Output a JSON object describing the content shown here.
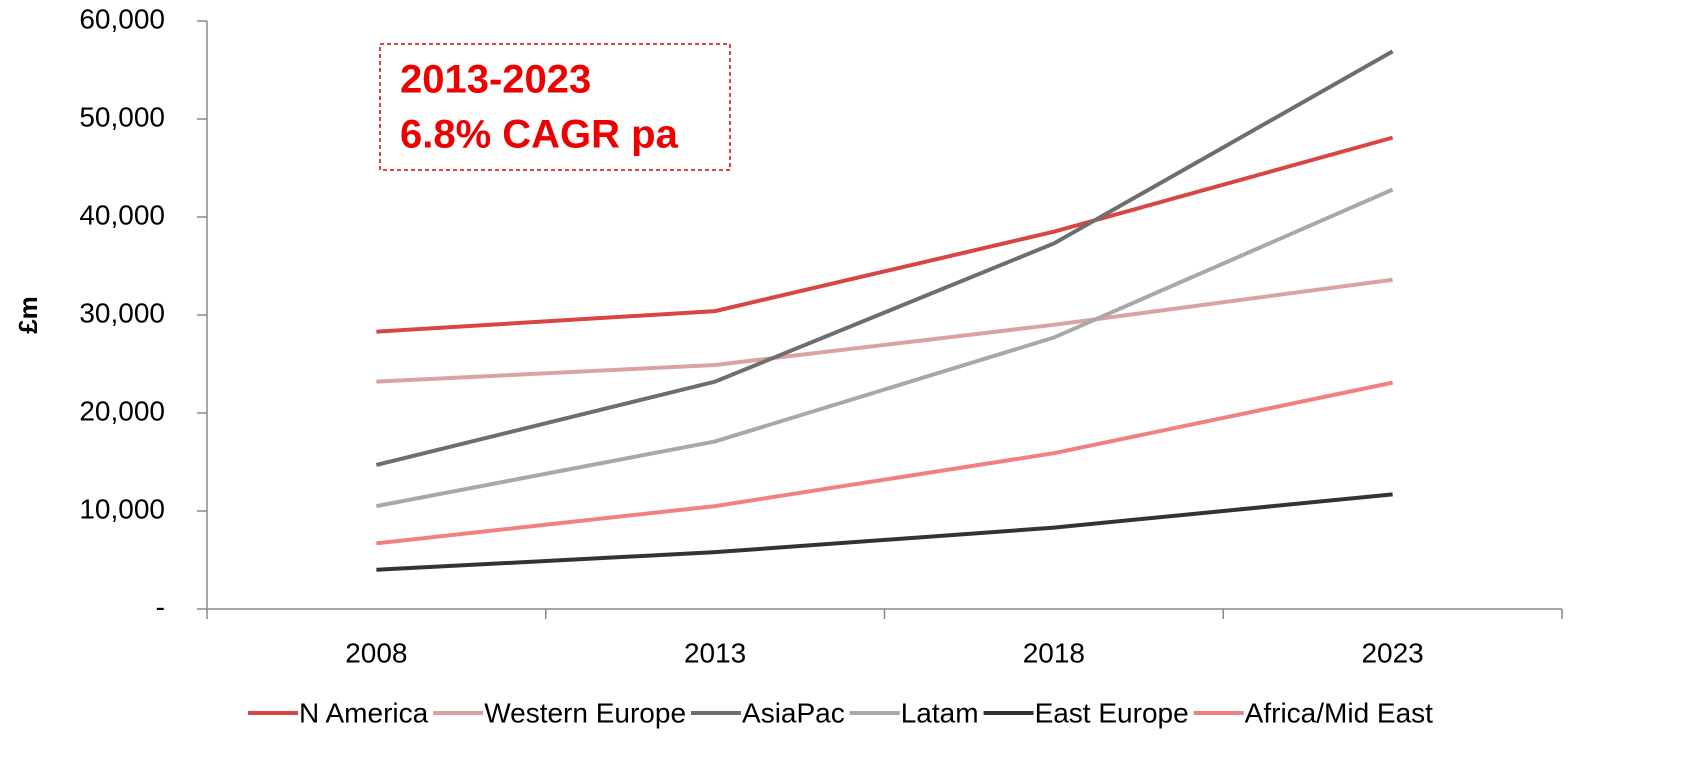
{
  "chart_data": {
    "type": "line",
    "y_label": "£m",
    "annotation": [
      "2013-2023",
      "6.8% CAGR pa"
    ],
    "categories": [
      "2008",
      "2013",
      "2018",
      "2023"
    ],
    "series": [
      {
        "name": "N America",
        "color": "#d94545",
        "values": [
          28300,
          30400,
          38500,
          48100
        ]
      },
      {
        "name": "Western Europe",
        "color": "#d9a3a3",
        "values": [
          23200,
          24900,
          29000,
          33600
        ]
      },
      {
        "name": "AsiaPac",
        "color": "#6e6e6e",
        "values": [
          14700,
          23200,
          37300,
          56900
        ]
      },
      {
        "name": "Latam",
        "color": "#a8a8a8",
        "values": [
          10500,
          17100,
          27700,
          42800
        ]
      },
      {
        "name": "East Europe",
        "color": "#333333",
        "values": [
          4000,
          5800,
          8300,
          11700
        ]
      },
      {
        "name": "Africa/Mid East",
        "color": "#f28080",
        "values": [
          6700,
          10500,
          15900,
          23100
        ]
      }
    ],
    "ylim": [
      0,
      60000
    ],
    "yticks": [
      {
        "value": 0,
        "label": "-"
      },
      {
        "value": 10000,
        "label": "10,000"
      },
      {
        "value": 20000,
        "label": "20,000"
      },
      {
        "value": 30000,
        "label": "30,000"
      },
      {
        "value": 40000,
        "label": "40,000"
      },
      {
        "value": 50000,
        "label": "50,000"
      },
      {
        "value": 60000,
        "label": "60,000"
      }
    ],
    "grid": false,
    "legend": "bottom"
  }
}
